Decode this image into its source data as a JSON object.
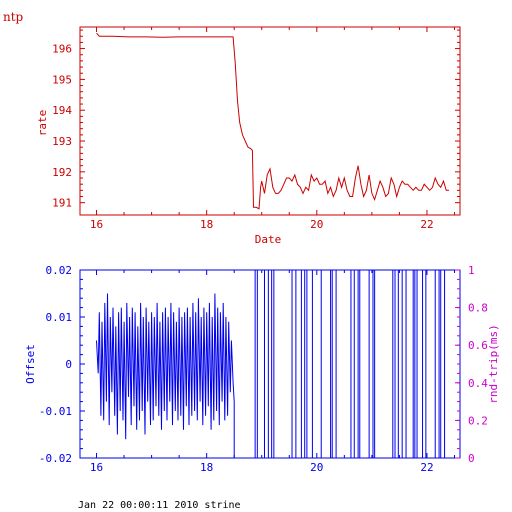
{
  "corner_label": "ntp",
  "footer_text": "Jan 22 00:00:11 2010 strine",
  "colors": {
    "rate": "#cc0000",
    "offset": "#0000ee",
    "roundtrip": "#cc00cc",
    "text": "#000000"
  },
  "chart_data": [
    {
      "type": "line",
      "title": "",
      "xlabel": "Date",
      "ylabel": "rate",
      "xlim": [
        15.7,
        22.6
      ],
      "ylim": [
        190.6,
        196.7
      ],
      "xticks": [
        "16",
        "18",
        "20",
        "22"
      ],
      "yticks": [
        "191",
        "192",
        "193",
        "194",
        "195",
        "196"
      ],
      "grid": false,
      "series": [
        {
          "x": [
            16.0,
            16.05,
            16.3,
            16.6,
            16.9,
            17.2,
            17.5,
            17.8,
            18.0,
            18.2,
            18.48,
            18.52,
            18.56,
            18.6,
            18.65,
            18.7,
            18.75,
            18.8,
            18.83,
            18.85,
            18.9,
            18.95,
            18.98,
            19.0,
            19.05,
            19.1,
            19.15,
            19.2,
            19.25,
            19.3,
            19.35,
            19.4,
            19.45,
            19.5,
            19.55,
            19.6,
            19.65,
            19.7,
            19.75,
            19.8,
            19.85,
            19.9,
            19.95,
            20.0,
            20.05,
            20.1,
            20.15,
            20.2,
            20.25,
            20.3,
            20.35,
            20.4,
            20.45,
            20.5,
            20.55,
            20.6,
            20.65,
            20.7,
            20.75,
            20.8,
            20.85,
            20.9,
            20.95,
            21.0,
            21.05,
            21.1,
            21.15,
            21.2,
            21.25,
            21.3,
            21.35,
            21.4,
            21.45,
            21.5,
            21.55,
            21.6,
            21.65,
            21.7,
            21.75,
            21.8,
            21.85,
            21.9,
            21.95,
            22.0,
            22.05,
            22.1,
            22.15,
            22.2,
            22.25,
            22.3,
            22.35,
            22.4
          ],
          "values": [
            196.5,
            196.4,
            196.4,
            196.38,
            196.38,
            196.37,
            196.38,
            196.38,
            196.38,
            196.38,
            196.38,
            195.5,
            194.3,
            193.6,
            193.2,
            193.0,
            192.8,
            192.75,
            192.7,
            190.85,
            190.85,
            190.8,
            191.5,
            191.7,
            191.3,
            191.9,
            192.1,
            191.5,
            191.3,
            191.3,
            191.4,
            191.6,
            191.8,
            191.8,
            191.7,
            191.9,
            191.6,
            191.5,
            191.3,
            191.5,
            191.4,
            191.9,
            191.7,
            191.8,
            191.6,
            191.6,
            191.7,
            191.3,
            191.5,
            191.2,
            191.4,
            191.8,
            191.5,
            191.8,
            191.4,
            191.2,
            191.2,
            191.8,
            192.2,
            191.6,
            191.2,
            191.4,
            191.9,
            191.3,
            191.1,
            191.4,
            191.7,
            191.5,
            191.2,
            191.3,
            191.8,
            191.6,
            191.2,
            191.5,
            191.7,
            191.6,
            191.6,
            191.5,
            191.4,
            191.5,
            191.4,
            191.4,
            191.6,
            191.5,
            191.4,
            191.5,
            191.8,
            191.6,
            191.5,
            191.7,
            191.4,
            191.4
          ]
        }
      ]
    },
    {
      "type": "line",
      "title": "",
      "xlabel": "",
      "ylabel": "Offset",
      "ylabel_right": "rnd-trip(ms)",
      "xlim": [
        15.7,
        22.6
      ],
      "ylim": [
        -0.02,
        0.02
      ],
      "ylim_right": [
        0,
        1
      ],
      "xticks": [
        "16",
        "18",
        "20",
        "22"
      ],
      "yticks": [
        "-0.02",
        "-0.01",
        "0",
        "0.01",
        "0.02"
      ],
      "yticks_right": [
        "0",
        "0.2",
        "0.4",
        "0.6",
        "0.8",
        "1"
      ],
      "grid": false,
      "offset_series": {
        "x": [
          16.0,
          16.03,
          16.05,
          16.08,
          16.1,
          16.13,
          16.15,
          16.18,
          16.2,
          16.23,
          16.25,
          16.28,
          16.3,
          16.33,
          16.35,
          16.38,
          16.4,
          16.43,
          16.45,
          16.48,
          16.5,
          16.53,
          16.55,
          16.58,
          16.6,
          16.63,
          16.65,
          16.68,
          16.7,
          16.73,
          16.75,
          16.78,
          16.8,
          16.83,
          16.85,
          16.88,
          16.9,
          16.93,
          16.95,
          16.98,
          17.0,
          17.03,
          17.05,
          17.08,
          17.1,
          17.13,
          17.15,
          17.18,
          17.2,
          17.23,
          17.25,
          17.28,
          17.3,
          17.33,
          17.35,
          17.38,
          17.4,
          17.43,
          17.45,
          17.48,
          17.5,
          17.53,
          17.55,
          17.58,
          17.6,
          17.63,
          17.65,
          17.68,
          17.7,
          17.73,
          17.75,
          17.78,
          17.8,
          17.83,
          17.85,
          17.88,
          17.9,
          17.93,
          17.95,
          17.98,
          18.0,
          18.03,
          18.05,
          18.08,
          18.1,
          18.13,
          18.15,
          18.18,
          18.2,
          18.23,
          18.25,
          18.28,
          18.3,
          18.33,
          18.35,
          18.38,
          18.4,
          18.43,
          18.45,
          18.48,
          18.5,
          18.5,
          18.9
        ],
        "values": [
          0.005,
          -0.002,
          0.011,
          -0.011,
          0.009,
          -0.012,
          0.013,
          -0.008,
          0.015,
          -0.013,
          0.01,
          -0.006,
          0.012,
          -0.011,
          0.008,
          -0.015,
          0.011,
          -0.01,
          0.012,
          -0.012,
          0.009,
          -0.016,
          0.013,
          -0.007,
          0.01,
          -0.013,
          0.012,
          -0.009,
          0.011,
          -0.014,
          0.008,
          -0.012,
          0.013,
          -0.01,
          0.01,
          -0.015,
          0.012,
          -0.008,
          0.009,
          -0.013,
          0.011,
          -0.012,
          0.01,
          -0.009,
          0.013,
          -0.011,
          0.009,
          -0.014,
          0.011,
          -0.01,
          0.012,
          -0.012,
          0.01,
          -0.008,
          0.013,
          -0.013,
          0.011,
          -0.01,
          0.009,
          -0.012,
          0.012,
          -0.011,
          0.01,
          -0.014,
          0.011,
          -0.009,
          0.012,
          -0.013,
          0.01,
          -0.011,
          0.013,
          -0.01,
          0.011,
          -0.012,
          0.014,
          -0.008,
          0.01,
          -0.013,
          0.012,
          -0.011,
          0.011,
          -0.009,
          0.013,
          -0.014,
          0.01,
          -0.012,
          0.015,
          -0.01,
          0.012,
          -0.013,
          0.011,
          -0.008,
          0.013,
          -0.012,
          0.01,
          -0.011,
          0.009,
          -0.006,
          0.005,
          -0.004,
          -0.008,
          -0.02,
          -0.02
        ]
      },
      "roundtrip_x": [
        18.88,
        18.92,
        19.05,
        19.12,
        19.18,
        19.22,
        19.55,
        19.62,
        19.72,
        19.78,
        19.82,
        19.92,
        20.08,
        20.25,
        20.28,
        20.35,
        20.62,
        20.68,
        20.75,
        20.78,
        20.95,
        21.02,
        21.05,
        21.38,
        21.42,
        21.48,
        21.55,
        21.62,
        21.75,
        21.78,
        21.82,
        21.92,
        21.98,
        22.15,
        22.22,
        22.25,
        22.32
      ]
    }
  ]
}
